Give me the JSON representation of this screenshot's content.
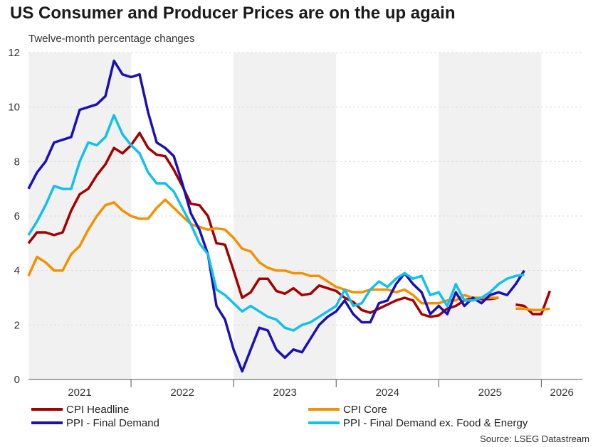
{
  "title": "US Consumer and Producer Prices are on the up again",
  "subtitle": "Twelve-month percentage changes",
  "source": "Source: LSEG Datastream",
  "chart_data": {
    "type": "line",
    "ylim": [
      0,
      12
    ],
    "yticks": [
      "0",
      "2",
      "4",
      "6",
      "8",
      "10",
      "12"
    ],
    "year_labels": [
      "2021",
      "2022",
      "2023",
      "2024",
      "2025",
      "2026"
    ],
    "grid": true,
    "shaded_years": [
      "2021",
      "2023",
      "2025"
    ],
    "legend_position": "bottom",
    "series": [
      {
        "name": "CPI Headline",
        "color": "#a50000",
        "points": [
          [
            "2021-01",
            5.0
          ],
          [
            "2021-02",
            5.4
          ],
          [
            "2021-03",
            5.4
          ],
          [
            "2021-04",
            5.3
          ],
          [
            "2021-05",
            5.4
          ],
          [
            "2021-06",
            6.2
          ],
          [
            "2021-07",
            6.8
          ],
          [
            "2021-08",
            7.0
          ],
          [
            "2021-09",
            7.5
          ],
          [
            "2021-10",
            7.9
          ],
          [
            "2021-11",
            8.5
          ],
          [
            "2021-12",
            8.3
          ],
          [
            "2022-01",
            8.6
          ],
          [
            "2022-02",
            9.05
          ],
          [
            "2022-03",
            8.5
          ],
          [
            "2022-04",
            8.25
          ],
          [
            "2022-05",
            8.2
          ],
          [
            "2022-06",
            7.7
          ],
          [
            "2022-07",
            7.1
          ],
          [
            "2022-08",
            6.45
          ],
          [
            "2022-09",
            6.4
          ],
          [
            "2022-10",
            6.0
          ],
          [
            "2022-11",
            5.0
          ],
          [
            "2022-12",
            4.95
          ],
          [
            "2023-01",
            4.0
          ],
          [
            "2023-02",
            3.0
          ],
          [
            "2023-03",
            3.2
          ],
          [
            "2023-04",
            3.7
          ],
          [
            "2023-05",
            3.7
          ],
          [
            "2023-06",
            3.25
          ],
          [
            "2023-07",
            3.15
          ],
          [
            "2023-08",
            3.35
          ],
          [
            "2023-09",
            3.1
          ],
          [
            "2023-10",
            3.15
          ],
          [
            "2023-11",
            3.45
          ],
          [
            "2023-12",
            3.35
          ],
          [
            "2024-01",
            3.25
          ],
          [
            "2024-02",
            3.0
          ],
          [
            "2024-03",
            2.85
          ],
          [
            "2024-04",
            2.55
          ],
          [
            "2024-05",
            2.45
          ],
          [
            "2024-06",
            2.6
          ],
          [
            "2024-07",
            2.75
          ],
          [
            "2024-08",
            2.9
          ],
          [
            "2024-09",
            3.0
          ],
          [
            "2024-10",
            2.9
          ],
          [
            "2024-11",
            2.4
          ],
          [
            "2024-12",
            2.3
          ],
          [
            "2025-01",
            2.35
          ],
          [
            "2025-02",
            2.6
          ],
          [
            "2025-03",
            2.7
          ],
          [
            "2025-04",
            2.9
          ],
          [
            "2025-05",
            3.0
          ],
          [
            "2025-06",
            2.95
          ],
          [
            "2025-07",
            2.95
          ],
          [
            "2025-08",
            3.0
          ]
        ],
        "points_tail": [
          [
            "2025-10",
            2.75
          ],
          [
            "2025-11",
            2.7
          ],
          [
            "2025-12",
            2.4
          ],
          [
            "2026-01",
            2.4
          ],
          [
            "2026-02",
            3.25
          ]
        ]
      },
      {
        "name": "CPI Core",
        "color": "#f39200",
        "points": [
          [
            "2021-01",
            3.8
          ],
          [
            "2021-02",
            4.5
          ],
          [
            "2021-03",
            4.3
          ],
          [
            "2021-04",
            4.0
          ],
          [
            "2021-05",
            4.0
          ],
          [
            "2021-06",
            4.6
          ],
          [
            "2021-07",
            4.9
          ],
          [
            "2021-08",
            5.5
          ],
          [
            "2021-09",
            6.0
          ],
          [
            "2021-10",
            6.4
          ],
          [
            "2021-11",
            6.5
          ],
          [
            "2021-12",
            6.2
          ],
          [
            "2022-01",
            6.0
          ],
          [
            "2022-02",
            5.9
          ],
          [
            "2022-03",
            5.9
          ],
          [
            "2022-04",
            6.3
          ],
          [
            "2022-05",
            6.6
          ],
          [
            "2022-06",
            6.3
          ],
          [
            "2022-07",
            6.0
          ],
          [
            "2022-08",
            5.7
          ],
          [
            "2022-09",
            5.6
          ],
          [
            "2022-10",
            5.5
          ],
          [
            "2022-11",
            5.55
          ],
          [
            "2022-12",
            5.5
          ],
          [
            "2023-01",
            5.2
          ],
          [
            "2023-02",
            4.8
          ],
          [
            "2023-03",
            4.7
          ],
          [
            "2023-04",
            4.3
          ],
          [
            "2023-05",
            4.1
          ],
          [
            "2023-06",
            4.0
          ],
          [
            "2023-07",
            4.0
          ],
          [
            "2023-08",
            3.9
          ],
          [
            "2023-09",
            3.9
          ],
          [
            "2023-10",
            3.8
          ],
          [
            "2023-11",
            3.8
          ],
          [
            "2023-12",
            3.6
          ],
          [
            "2024-01",
            3.4
          ],
          [
            "2024-02",
            3.3
          ],
          [
            "2024-03",
            3.2
          ],
          [
            "2024-04",
            3.2
          ],
          [
            "2024-05",
            3.3
          ],
          [
            "2024-06",
            3.3
          ],
          [
            "2024-07",
            3.3
          ],
          [
            "2024-08",
            3.2
          ],
          [
            "2024-09",
            3.3
          ],
          [
            "2024-10",
            3.1
          ],
          [
            "2024-11",
            2.8
          ],
          [
            "2024-12",
            2.8
          ],
          [
            "2025-01",
            2.8
          ],
          [
            "2025-02",
            2.9
          ],
          [
            "2025-03",
            2.9
          ],
          [
            "2025-04",
            3.1
          ],
          [
            "2025-05",
            3.0
          ],
          [
            "2025-06",
            3.0
          ],
          [
            "2025-07",
            3.0
          ],
          [
            "2025-08",
            3.0
          ]
        ],
        "points_tail": [
          [
            "2025-10",
            2.6
          ],
          [
            "2025-11",
            2.6
          ],
          [
            "2025-12",
            2.55
          ],
          [
            "2026-01",
            2.55
          ],
          [
            "2026-02",
            2.6
          ]
        ]
      },
      {
        "name": "PPI - Final Demand",
        "color": "#1a10b5",
        "points": [
          [
            "2021-01",
            7.0
          ],
          [
            "2021-02",
            7.6
          ],
          [
            "2021-03",
            8.0
          ],
          [
            "2021-04",
            8.7
          ],
          [
            "2021-05",
            8.8
          ],
          [
            "2021-06",
            8.9
          ],
          [
            "2021-07",
            9.9
          ],
          [
            "2021-08",
            10.0
          ],
          [
            "2021-09",
            10.1
          ],
          [
            "2021-10",
            10.4
          ],
          [
            "2021-11",
            11.7
          ],
          [
            "2021-12",
            11.2
          ],
          [
            "2022-01",
            11.1
          ],
          [
            "2022-02",
            11.2
          ],
          [
            "2022-03",
            9.8
          ],
          [
            "2022-04",
            8.7
          ],
          [
            "2022-05",
            8.5
          ],
          [
            "2022-06",
            8.2
          ],
          [
            "2022-07",
            7.2
          ],
          [
            "2022-08",
            6.1
          ],
          [
            "2022-09",
            5.5
          ],
          [
            "2022-10",
            4.6
          ],
          [
            "2022-11",
            2.7
          ],
          [
            "2022-12",
            2.2
          ],
          [
            "2023-01",
            1.1
          ],
          [
            "2023-02",
            0.3
          ],
          [
            "2023-03",
            1.1
          ],
          [
            "2023-04",
            1.9
          ],
          [
            "2023-05",
            1.8
          ],
          [
            "2023-06",
            1.1
          ],
          [
            "2023-07",
            0.8
          ],
          [
            "2023-08",
            1.1
          ],
          [
            "2023-09",
            1.0
          ],
          [
            "2023-10",
            1.5
          ],
          [
            "2023-11",
            2.0
          ],
          [
            "2023-12",
            2.3
          ],
          [
            "2024-01",
            2.5
          ],
          [
            "2024-02",
            2.9
          ],
          [
            "2024-03",
            2.4
          ],
          [
            "2024-04",
            2.1
          ],
          [
            "2024-05",
            2.1
          ],
          [
            "2024-06",
            2.8
          ],
          [
            "2024-07",
            2.9
          ],
          [
            "2024-08",
            3.5
          ],
          [
            "2024-09",
            3.9
          ],
          [
            "2024-10",
            3.5
          ],
          [
            "2024-11",
            3.2
          ],
          [
            "2024-12",
            2.4
          ],
          [
            "2025-01",
            2.7
          ],
          [
            "2025-02",
            2.4
          ],
          [
            "2025-03",
            3.2
          ],
          [
            "2025-04",
            2.7
          ],
          [
            "2025-05",
            3.0
          ],
          [
            "2025-06",
            2.8
          ],
          [
            "2025-07",
            3.1
          ],
          [
            "2025-08",
            3.2
          ],
          [
            "2025-09",
            3.1
          ],
          [
            "2025-10",
            3.5
          ],
          [
            "2025-11",
            4.0
          ]
        ]
      },
      {
        "name": "PPI - Final Demand ex. Food & Energy",
        "color": "#12c0ee",
        "points": [
          [
            "2021-01",
            5.3
          ],
          [
            "2021-02",
            5.8
          ],
          [
            "2021-03",
            6.4
          ],
          [
            "2021-04",
            7.1
          ],
          [
            "2021-05",
            7.0
          ],
          [
            "2021-06",
            7.0
          ],
          [
            "2021-07",
            8.0
          ],
          [
            "2021-08",
            8.7
          ],
          [
            "2021-09",
            8.6
          ],
          [
            "2021-10",
            8.9
          ],
          [
            "2021-11",
            9.7
          ],
          [
            "2021-12",
            9.0
          ],
          [
            "2022-01",
            8.6
          ],
          [
            "2022-02",
            8.3
          ],
          [
            "2022-03",
            7.6
          ],
          [
            "2022-04",
            7.2
          ],
          [
            "2022-05",
            7.2
          ],
          [
            "2022-06",
            6.9
          ],
          [
            "2022-07",
            6.3
          ],
          [
            "2022-08",
            5.7
          ],
          [
            "2022-09",
            5.0
          ],
          [
            "2022-10",
            4.6
          ],
          [
            "2022-11",
            3.3
          ],
          [
            "2022-12",
            3.1
          ],
          [
            "2023-01",
            2.8
          ],
          [
            "2023-02",
            2.5
          ],
          [
            "2023-03",
            2.7
          ],
          [
            "2023-04",
            2.5
          ],
          [
            "2023-05",
            2.3
          ],
          [
            "2023-06",
            2.2
          ],
          [
            "2023-07",
            1.9
          ],
          [
            "2023-08",
            1.8
          ],
          [
            "2023-09",
            2.0
          ],
          [
            "2023-10",
            2.1
          ],
          [
            "2023-11",
            2.3
          ],
          [
            "2023-12",
            2.5
          ],
          [
            "2024-01",
            2.7
          ],
          [
            "2024-02",
            3.3
          ],
          [
            "2024-03",
            2.7
          ],
          [
            "2024-04",
            2.8
          ],
          [
            "2024-05",
            3.3
          ],
          [
            "2024-06",
            3.6
          ],
          [
            "2024-07",
            3.4
          ],
          [
            "2024-08",
            3.7
          ],
          [
            "2024-09",
            3.9
          ],
          [
            "2024-10",
            3.7
          ],
          [
            "2024-11",
            3.8
          ],
          [
            "2024-12",
            3.1
          ],
          [
            "2025-01",
            3.2
          ],
          [
            "2025-02",
            2.7
          ],
          [
            "2025-03",
            3.5
          ],
          [
            "2025-04",
            2.9
          ],
          [
            "2025-05",
            2.9
          ],
          [
            "2025-06",
            3.0
          ],
          [
            "2025-07",
            3.2
          ],
          [
            "2025-08",
            3.5
          ],
          [
            "2025-09",
            3.7
          ],
          [
            "2025-10",
            3.8
          ],
          [
            "2025-11",
            3.85
          ]
        ]
      }
    ]
  }
}
